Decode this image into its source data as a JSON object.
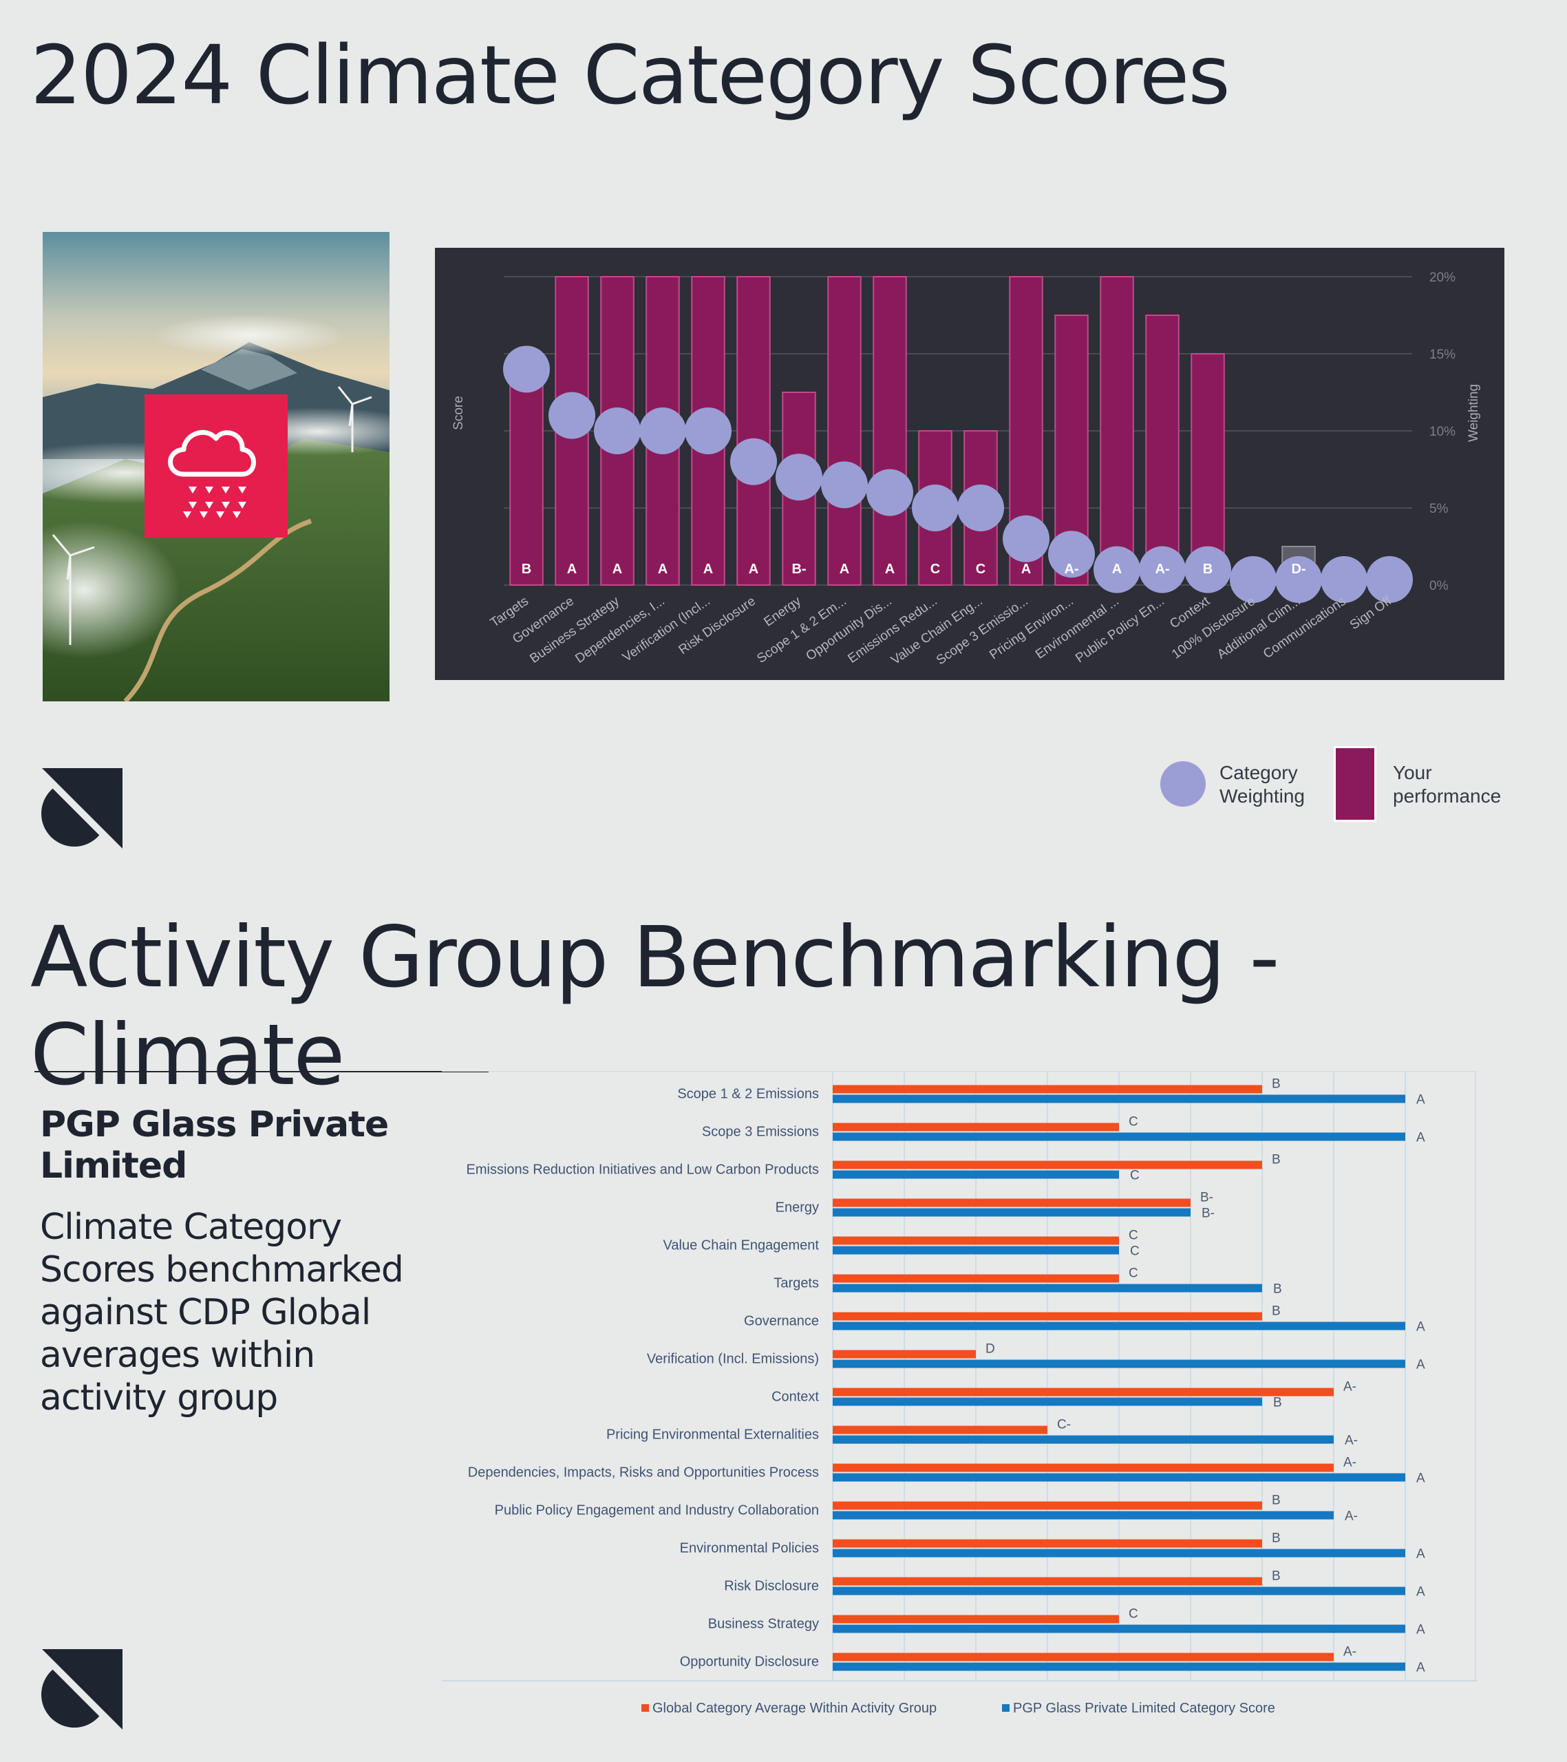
{
  "page": {
    "title_scores": "2024 Climate Category Scores",
    "title_benchmark": "Activity Group Benchmarking - Climate",
    "company_name": "PGP Glass Private Limited",
    "subtitle": "Climate Category Scores benchmarked against CDP Global averages within activity group"
  },
  "legend_scores": {
    "weighting_label": "Category Weighting",
    "performance_label": "Your performance"
  },
  "colors": {
    "performance_bar": "#8b1a5b",
    "weighting_dot": "#9a9ed4",
    "global_average": "#f24e1e",
    "company_score": "#1479c1",
    "chart_bg": "#2d2e36",
    "icon_red": "#e61e4d"
  },
  "icons": {
    "photo": "wind-turbines-landscape",
    "badge": "cloud-rain-icon",
    "logo": "brand-logo-icon"
  },
  "chart_data": [
    {
      "type": "bar",
      "title": "2024 Climate Category Scores",
      "xlabel": "",
      "ylabel": "Score",
      "y2label": "Weighting",
      "ylim": [
        0,
        20
      ],
      "y_ticks": [
        "0%",
        "5%",
        "10%",
        "15%",
        "20%"
      ],
      "categories": [
        "Targets",
        "Governance",
        "Business Strategy",
        "Dependencies, I...",
        "Verification (Incl...",
        "Risk Disclosure",
        "Energy",
        "Scope 1 & 2 Em...",
        "Opportunity Dis...",
        "Emissions Redu...",
        "Value Chain Eng...",
        "Scope 3 Emissio...",
        "Pricing Environ...",
        "Environmental ...",
        "Public Policy En...",
        "Context",
        "100% Disclosure",
        "Additional Clim...",
        "Communications",
        "Sign Off"
      ],
      "series": [
        {
          "name": "Your performance",
          "type": "bar",
          "values": [
            15,
            20,
            20,
            20,
            20,
            20,
            12.5,
            20,
            20,
            10,
            10,
            20,
            17.5,
            20,
            17.5,
            15,
            0,
            2.5,
            0,
            0
          ]
        },
        {
          "name": "Category Weighting",
          "type": "scatter",
          "values": [
            14,
            11,
            10,
            10,
            10,
            8,
            7,
            6.5,
            6,
            5,
            5,
            3,
            2,
            1,
            1,
            1,
            0,
            0,
            0,
            0
          ]
        }
      ],
      "grades": [
        "B",
        "A",
        "A",
        "A",
        "A",
        "A",
        "B-",
        "A",
        "A",
        "C",
        "C",
        "A",
        "A-",
        "A",
        "A-",
        "B",
        "",
        "D-",
        "",
        ""
      ]
    },
    {
      "type": "bar",
      "orientation": "horizontal",
      "title": "",
      "xlabel": "",
      "ylabel": "",
      "grade_scale": [
        "D-",
        "D",
        "C-",
        "C",
        "B-",
        "B",
        "A-",
        "A"
      ],
      "categories": [
        "Scope 1 & 2 Emissions",
        "Scope 3 Emissions",
        "Emissions Reduction Initiatives and Low Carbon Products",
        "Energy",
        "Value Chain Engagement",
        "Targets",
        "Governance",
        "Verification (Incl. Emissions)",
        "Context",
        "Pricing Environmental Externalities",
        "Dependencies, Impacts, Risks and Opportunities Process",
        "Public Policy Engagement and Industry Collaboration",
        "Environmental Policies",
        "Risk Disclosure",
        "Business Strategy",
        "Opportunity Disclosure"
      ],
      "series": [
        {
          "name": "Global Category Average Within Activity Group",
          "grades": [
            "B",
            "C",
            "B",
            "B-",
            "C",
            "C",
            "B",
            "D",
            "A-",
            "C-",
            "A-",
            "B",
            "B",
            "B",
            "C",
            "A-"
          ],
          "values": [
            6,
            4,
            6,
            5,
            4,
            4,
            6,
            2,
            7,
            3,
            7,
            6,
            6,
            6,
            4,
            7
          ]
        },
        {
          "name": "PGP Glass Private Limited Category Score",
          "grades": [
            "A",
            "A",
            "C",
            "B-",
            "C",
            "B",
            "A",
            "A",
            "B",
            "A-",
            "A",
            "A-",
            "A",
            "A",
            "A",
            "A"
          ],
          "values": [
            8,
            8,
            4,
            5,
            4,
            6,
            8,
            8,
            6,
            7,
            8,
            7,
            8,
            8,
            8,
            8
          ]
        }
      ],
      "legend": [
        "Global Category Average Within Activity Group",
        "PGP Glass Private Limited Category Score"
      ]
    }
  ]
}
